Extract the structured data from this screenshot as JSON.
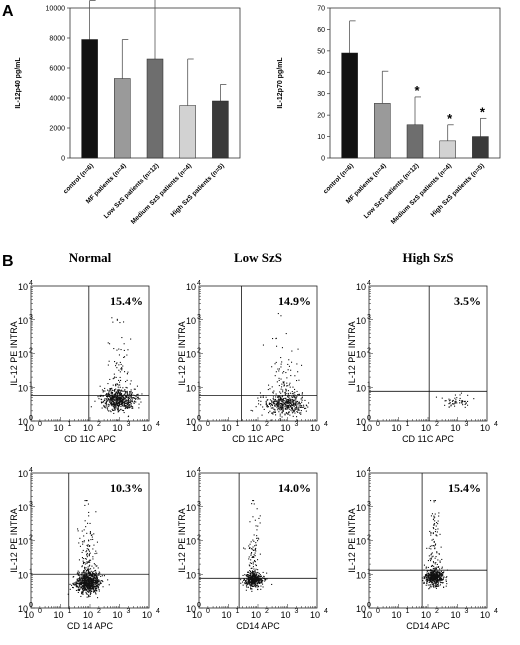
{
  "panel_a_label": "A",
  "panel_b_label": "B",
  "chart_data": [
    {
      "type": "bar",
      "ylabel": "IL-12p40 pg/mL",
      "ylim": [
        0,
        10000
      ],
      "yticks": [
        "0",
        "2000",
        "4000",
        "6000",
        "8000",
        "10000"
      ],
      "categories": [
        "control (n=6)",
        "MF patients (n=4)",
        "Low SzS patients (n=12)",
        "Medium SzS patients (n=4)",
        "High SzS patients (n=5)"
      ],
      "values": [
        7900,
        5300,
        6600,
        3500,
        3800
      ],
      "errors": [
        2600,
        2600,
        4100,
        3100,
        1100
      ],
      "colors": [
        "#111111",
        "#9a9a9a",
        "#6e6e6e",
        "#d2d2d2",
        "#3a3a3a"
      ],
      "significance": [
        "",
        "",
        "",
        "",
        ""
      ]
    },
    {
      "type": "bar",
      "ylabel": "IL-12p70 pg/mL",
      "ylim": [
        0,
        70
      ],
      "yticks": [
        "0",
        "10",
        "20",
        "30",
        "40",
        "50",
        "60",
        "70"
      ],
      "categories": [
        "control (n=6)",
        "MF patients (n=4)",
        "Low SzS patients (n=12)",
        "Medium SzS patients (n=4)",
        "High SzS patients (n=5)"
      ],
      "values": [
        49,
        25.5,
        15.5,
        8,
        10
      ],
      "errors": [
        15,
        15,
        13,
        7.5,
        8.5
      ],
      "colors": [
        "#111111",
        "#9a9a9a",
        "#6e6e6e",
        "#d2d2d2",
        "#3a3a3a"
      ],
      "significance": [
        "",
        "",
        "*",
        "*",
        "*"
      ]
    }
  ],
  "flow": {
    "column_headers": [
      "Normal",
      "Low SzS",
      "High SzS"
    ],
    "tick_labels": [
      "10",
      "10",
      "10",
      "10",
      "10"
    ],
    "tick_exponents": [
      "0",
      "1",
      "2",
      "3",
      "4"
    ],
    "rows": [
      {
        "ylabel": "IL-12 PE INTRA",
        "xlabels": [
          "CD 11C APC",
          "CD 11C APC",
          "CD 11C APC"
        ],
        "percents": [
          "15.4%",
          "14.9%",
          "3.5%"
        ]
      },
      {
        "ylabel": "IL-12 PE INTRA",
        "xlabels": [
          "CD 14 APC",
          "CD14 APC",
          "CD14 APC"
        ],
        "percents": [
          "10.3%",
          "14.0%",
          "15.4%"
        ]
      }
    ]
  }
}
